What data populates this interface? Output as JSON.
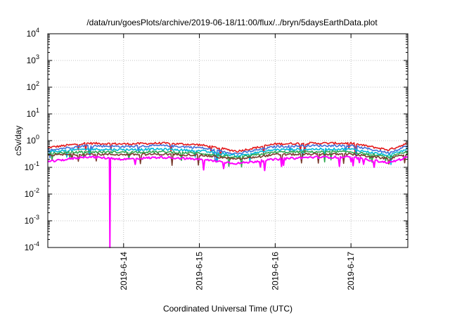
{
  "chart_data": {
    "type": "line",
    "title": "/data/run/goesPlots/archive/2019-06-18/11:00/flux/../bryn/5daysEarthData.plot",
    "xlabel": "Coordinated Universal Time (UTC)",
    "ylabel": "cSv/day",
    "yscale": "log",
    "ylim": [
      0.0001,
      10000
    ],
    "yticks": [
      {
        "value": 0.0001,
        "base": "10",
        "exp": "-4"
      },
      {
        "value": 0.001,
        "base": "10",
        "exp": "-3"
      },
      {
        "value": 0.01,
        "base": "10",
        "exp": "-2"
      },
      {
        "value": 0.1,
        "base": "10",
        "exp": "-1"
      },
      {
        "value": 1,
        "base": "10",
        "exp": "0"
      },
      {
        "value": 10,
        "base": "10",
        "exp": "1"
      },
      {
        "value": 100,
        "base": "10",
        "exp": "2"
      },
      {
        "value": 1000,
        "base": "10",
        "exp": "3"
      },
      {
        "value": 10000,
        "base": "10",
        "exp": "4"
      }
    ],
    "xlim": [
      "2019-06-13T00:00",
      "2019-06-17T18:00"
    ],
    "xticks": [
      {
        "value": "2019-06-14T00:00",
        "label": "2019-6-14"
      },
      {
        "value": "2019-06-15T00:00",
        "label": "2019-6-15"
      },
      {
        "value": "2019-06-16T00:00",
        "label": "2019-6-16"
      },
      {
        "value": "2019-06-17T00:00",
        "label": "2019-6-17"
      }
    ],
    "grid": true,
    "series": [
      {
        "color": "#e41a1c",
        "x": [
          "2019-06-13T00:00",
          "2019-06-13T12:00",
          "2019-06-14T00:00",
          "2019-06-14T12:00",
          "2019-06-15T00:00",
          "2019-06-15T12:00",
          "2019-06-16T00:00",
          "2019-06-16T12:00",
          "2019-06-17T00:00",
          "2019-06-17T12:00",
          "2019-06-17T18:00"
        ],
        "values": [
          0.55,
          0.8,
          0.75,
          0.8,
          0.7,
          0.4,
          0.75,
          0.8,
          0.8,
          0.45,
          0.8
        ]
      },
      {
        "color": "#3f6fd8",
        "x": [
          "2019-06-13T00:00",
          "2019-06-13T12:00",
          "2019-06-14T00:00",
          "2019-06-14T12:00",
          "2019-06-15T00:00",
          "2019-06-15T12:00",
          "2019-06-16T00:00",
          "2019-06-16T12:00",
          "2019-06-17T00:00",
          "2019-06-17T12:00",
          "2019-06-17T18:00"
        ],
        "values": [
          0.45,
          0.65,
          0.6,
          0.65,
          0.55,
          0.32,
          0.6,
          0.65,
          0.65,
          0.35,
          0.65
        ]
      },
      {
        "color": "#00b8d8",
        "x": [
          "2019-06-13T00:00",
          "2019-06-13T12:00",
          "2019-06-14T00:00",
          "2019-06-14T12:00",
          "2019-06-15T00:00",
          "2019-06-15T12:00",
          "2019-06-16T00:00",
          "2019-06-16T12:00",
          "2019-06-17T00:00",
          "2019-06-17T12:00",
          "2019-06-17T18:00"
        ],
        "values": [
          0.38,
          0.48,
          0.46,
          0.48,
          0.42,
          0.27,
          0.46,
          0.48,
          0.48,
          0.28,
          0.48
        ]
      },
      {
        "color": "#2fa84f",
        "x": [
          "2019-06-13T00:00",
          "2019-06-13T12:00",
          "2019-06-14T00:00",
          "2019-06-14T12:00",
          "2019-06-15T00:00",
          "2019-06-15T12:00",
          "2019-06-16T00:00",
          "2019-06-16T12:00",
          "2019-06-17T00:00",
          "2019-06-17T12:00",
          "2019-06-17T18:00"
        ],
        "values": [
          0.33,
          0.38,
          0.37,
          0.38,
          0.34,
          0.23,
          0.37,
          0.38,
          0.38,
          0.24,
          0.38
        ]
      },
      {
        "color": "#7a3b2e",
        "x": [
          "2019-06-13T00:00",
          "2019-06-13T12:00",
          "2019-06-14T00:00",
          "2019-06-14T12:00",
          "2019-06-15T00:00",
          "2019-06-15T12:00",
          "2019-06-16T00:00",
          "2019-06-16T12:00",
          "2019-06-17T00:00",
          "2019-06-17T12:00",
          "2019-06-17T18:00"
        ],
        "values": [
          0.29,
          0.31,
          0.3,
          0.31,
          0.29,
          0.2,
          0.3,
          0.31,
          0.31,
          0.21,
          0.31
        ]
      },
      {
        "color": "#ff00ff",
        "x": [
          "2019-06-13T00:00",
          "2019-06-13T12:00",
          "2019-06-13T19:30",
          "2019-06-13T19:40",
          "2019-06-13T19:50",
          "2019-06-14T00:00",
          "2019-06-14T12:00",
          "2019-06-15T00:00",
          "2019-06-15T12:00",
          "2019-06-16T00:00",
          "2019-06-16T12:00",
          "2019-06-17T00:00",
          "2019-06-17T12:00",
          "2019-06-17T18:00"
        ],
        "values": [
          0.16,
          0.25,
          0.22,
          0.0001,
          0.22,
          0.2,
          0.24,
          0.2,
          0.14,
          0.2,
          0.24,
          0.24,
          0.15,
          0.24
        ]
      }
    ]
  }
}
